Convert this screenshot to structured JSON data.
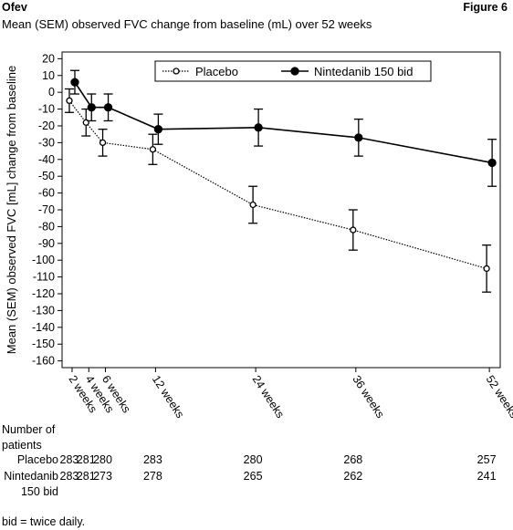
{
  "header": {
    "left": "Ofev",
    "right": "Figure 6"
  },
  "chart_data": {
    "type": "line",
    "title": "Mean (SEM) observed FVC change from baseline (mL) over 52 weeks",
    "y_label": "Mean (SEM) observed FVC [mL] change from baseline",
    "xlim": [
      0.8,
      53.3
    ],
    "ylim": [
      -164,
      24
    ],
    "xticks": [
      {
        "value": 2,
        "label": "2 weeks"
      },
      {
        "value": 4,
        "label": "4 weeks"
      },
      {
        "value": 6,
        "label": "6 weeks"
      },
      {
        "value": 12,
        "label": "12 weeks"
      },
      {
        "value": 24,
        "label": "24 weeks"
      },
      {
        "value": 36,
        "label": "36 weeks"
      },
      {
        "value": 52,
        "label": "52 weeks"
      }
    ],
    "yticks": [
      20,
      10,
      0,
      -10,
      -20,
      -30,
      -40,
      -50,
      -60,
      -70,
      -80,
      -90,
      -100,
      -110,
      -120,
      -130,
      -140,
      -150,
      -160
    ],
    "x": [
      2,
      4,
      6,
      12,
      24,
      36,
      52
    ],
    "series": [
      {
        "name": "Placebo",
        "color": "#000000",
        "style": "dotted",
        "marker": "open",
        "values": [
          -5,
          -18,
          -30,
          -34,
          -67,
          -82,
          -105
        ],
        "errors": [
          7,
          8,
          8,
          9,
          11,
          12,
          14
        ]
      },
      {
        "name": "Nintedanib 150 bid",
        "color": "#000000",
        "style": "solid",
        "marker": "filled",
        "values": [
          6,
          -9,
          -9,
          -22,
          -21,
          -27,
          -42
        ],
        "errors": [
          7,
          8,
          8,
          9,
          11,
          11,
          14
        ]
      }
    ],
    "legend": "top"
  },
  "patients": {
    "heading": "Number of patients",
    "rows": [
      {
        "label": "Placebo",
        "counts": [
          "283",
          "281",
          "280",
          "283",
          "280",
          "268",
          "257"
        ]
      },
      {
        "label": "Nintedanib 150 bid",
        "counts": [
          "283",
          "281",
          "273",
          "278",
          "265",
          "262",
          "241"
        ]
      }
    ]
  },
  "footnote": "bid = twice daily."
}
